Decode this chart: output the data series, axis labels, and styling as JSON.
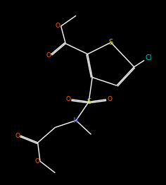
{
  "bg_color": "#000000",
  "line_color": "#ffffff",
  "atom_colors": {
    "O": "#ff6600",
    "S": "#cccc00",
    "N": "#4444ff",
    "Cl": "#00cccc",
    "C": "#ffffff"
  },
  "figsize": [
    2.36,
    2.62
  ],
  "dpi": 100,
  "lw": 1.0
}
